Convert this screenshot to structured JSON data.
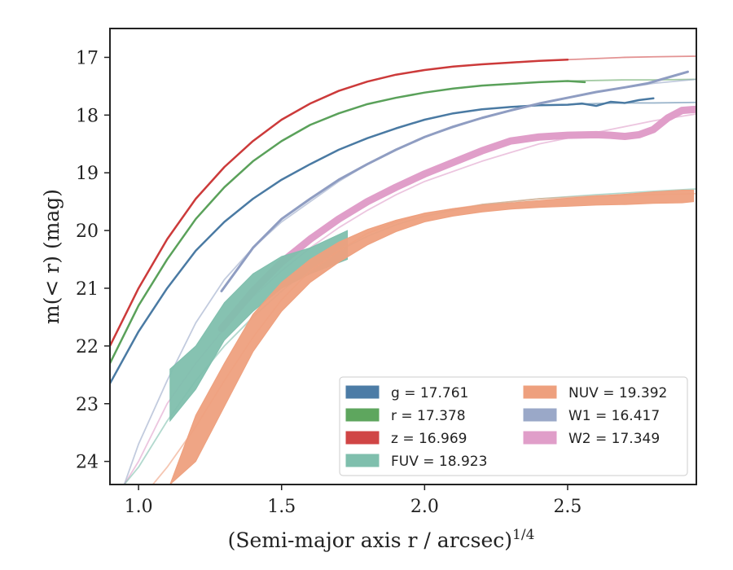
{
  "chart_data": {
    "type": "line",
    "xlabel": "(Semi-major axis r / arcsec)",
    "xlabel_superscript": "1/4",
    "ylabel": "m(< r) (mag)",
    "xlim": [
      0.9,
      2.95
    ],
    "ylim": [
      24.4,
      16.5
    ],
    "y_inverted": true,
    "x_ticks": [
      1.0,
      1.5,
      2.0,
      2.5
    ],
    "x_tick_labels": [
      "1.0",
      "1.5",
      "2.0",
      "2.5"
    ],
    "y_ticks": [
      17,
      18,
      19,
      20,
      21,
      22,
      23,
      24
    ],
    "y_tick_labels": [
      "17",
      "18",
      "19",
      "20",
      "21",
      "22",
      "23",
      "24"
    ],
    "grid": false,
    "legend_placement": "lower-right",
    "legend": [
      {
        "band": "g",
        "label": "g = 17.761",
        "color": "#4c7ca6"
      },
      {
        "band": "r",
        "label": "r = 17.378",
        "color": "#5ea65e"
      },
      {
        "band": "z",
        "label": "z = 16.969",
        "color": "#d04545"
      },
      {
        "band": "FUV",
        "label": "FUV = 18.923",
        "color": "#7fbfad"
      },
      {
        "band": "NUV",
        "label": "NUV = 19.392",
        "color": "#eea07e"
      },
      {
        "band": "W1",
        "label": "W1 = 16.417",
        "color": "#9aa8c8"
      },
      {
        "band": "W2",
        "label": "W2 = 17.349",
        "color": "#e09ec9"
      }
    ],
    "series": [
      {
        "name": "g",
        "kind": "line",
        "color": "#4a7aa3",
        "width": 2.5,
        "x": [
          0.9,
          1.0,
          1.1,
          1.2,
          1.3,
          1.4,
          1.5,
          1.6,
          1.7,
          1.8,
          1.9,
          2.0,
          2.1,
          2.2,
          2.3,
          2.4,
          2.5,
          2.55,
          2.6,
          2.65,
          2.7,
          2.75,
          2.8
        ],
        "y": [
          22.65,
          21.75,
          21.0,
          20.35,
          19.85,
          19.45,
          19.12,
          18.85,
          18.6,
          18.4,
          18.23,
          18.08,
          17.97,
          17.9,
          17.86,
          17.83,
          17.82,
          17.8,
          17.84,
          17.77,
          17.79,
          17.74,
          17.71
        ]
      },
      {
        "name": "g-model",
        "kind": "line",
        "color": "#4a7aa3",
        "width": 1.8,
        "opacity": 0.55,
        "x": [
          2.5,
          2.6,
          2.7,
          2.8,
          2.95
        ],
        "y": [
          17.82,
          17.8,
          17.79,
          17.79,
          17.78
        ]
      },
      {
        "name": "r",
        "kind": "line",
        "color": "#5aa15a",
        "width": 2.5,
        "x": [
          0.9,
          1.0,
          1.1,
          1.2,
          1.3,
          1.4,
          1.5,
          1.6,
          1.7,
          1.8,
          1.9,
          2.0,
          2.1,
          2.2,
          2.3,
          2.4,
          2.5,
          2.56
        ],
        "y": [
          22.3,
          21.3,
          20.5,
          19.8,
          19.25,
          18.8,
          18.45,
          18.17,
          17.97,
          17.81,
          17.7,
          17.61,
          17.54,
          17.49,
          17.46,
          17.43,
          17.41,
          17.43
        ]
      },
      {
        "name": "r-model",
        "kind": "line",
        "color": "#5aa15a",
        "width": 1.8,
        "opacity": 0.55,
        "x": [
          2.5,
          2.6,
          2.7,
          2.8,
          2.95
        ],
        "y": [
          17.41,
          17.4,
          17.39,
          17.39,
          17.38
        ]
      },
      {
        "name": "z",
        "kind": "line",
        "color": "#cc3a3a",
        "width": 2.5,
        "x": [
          0.9,
          1.0,
          1.1,
          1.2,
          1.3,
          1.4,
          1.5,
          1.6,
          1.7,
          1.8,
          1.9,
          2.0,
          2.1,
          2.2,
          2.3,
          2.4,
          2.5
        ],
        "y": [
          22.0,
          21.0,
          20.15,
          19.45,
          18.9,
          18.45,
          18.08,
          17.8,
          17.58,
          17.42,
          17.3,
          17.22,
          17.16,
          17.12,
          17.09,
          17.06,
          17.04
        ]
      },
      {
        "name": "z-model",
        "kind": "line",
        "color": "#cc3a3a",
        "width": 1.8,
        "opacity": 0.55,
        "x": [
          2.5,
          2.6,
          2.7,
          2.8,
          2.95
        ],
        "y": [
          17.04,
          17.02,
          17.0,
          16.99,
          16.98
        ]
      },
      {
        "name": "W1-model",
        "kind": "line",
        "color": "#9aa8c8",
        "width": 1.8,
        "opacity": 0.6,
        "x": [
          0.95,
          1.0,
          1.1,
          1.2,
          1.3,
          1.4,
          1.5,
          1.6,
          1.7,
          1.8,
          1.9,
          2.0,
          2.2,
          2.4,
          2.6,
          2.8,
          2.95
        ],
        "y": [
          24.4,
          23.7,
          22.6,
          21.6,
          20.85,
          20.3,
          19.85,
          19.5,
          19.15,
          18.85,
          18.6,
          18.38,
          18.05,
          17.8,
          17.6,
          17.45,
          17.38
        ]
      },
      {
        "name": "W1",
        "kind": "line",
        "color": "#8f9dc2",
        "width": 3,
        "x": [
          1.29,
          1.4,
          1.5,
          1.6,
          1.7,
          1.8,
          1.9,
          2.0,
          2.1,
          2.2,
          2.3,
          2.4,
          2.5,
          2.6,
          2.7,
          2.78,
          2.85,
          2.92
        ],
        "y": [
          21.05,
          20.3,
          19.8,
          19.45,
          19.12,
          18.85,
          18.6,
          18.38,
          18.2,
          18.05,
          17.92,
          17.8,
          17.7,
          17.6,
          17.52,
          17.45,
          17.35,
          17.25
        ]
      },
      {
        "name": "W2-model",
        "kind": "line",
        "color": "#e09ec9",
        "width": 1.8,
        "opacity": 0.6,
        "x": [
          0.95,
          1.0,
          1.1,
          1.2,
          1.3,
          1.4,
          1.5,
          1.6,
          1.7,
          1.8,
          1.9,
          2.0,
          2.2,
          2.4,
          2.6,
          2.8,
          2.95
        ],
        "y": [
          24.4,
          24.0,
          23.0,
          22.3,
          21.7,
          21.15,
          20.7,
          20.3,
          19.95,
          19.65,
          19.38,
          19.15,
          18.8,
          18.5,
          18.3,
          18.1,
          17.98
        ]
      },
      {
        "name": "W2",
        "kind": "line",
        "color": "#e09ec9",
        "width": 9,
        "x": [
          1.29,
          1.4,
          1.5,
          1.6,
          1.7,
          1.8,
          1.9,
          2.0,
          2.1,
          2.2,
          2.3,
          2.4,
          2.5,
          2.6,
          2.65,
          2.7,
          2.75,
          2.8,
          2.85,
          2.9,
          2.95
        ],
        "y": [
          21.7,
          21.05,
          20.55,
          20.15,
          19.8,
          19.5,
          19.25,
          19.02,
          18.82,
          18.62,
          18.45,
          18.38,
          18.35,
          18.34,
          18.35,
          18.37,
          18.34,
          18.25,
          18.05,
          17.92,
          17.9
        ]
      },
      {
        "name": "FUV-model",
        "kind": "line",
        "color": "#7fbfad",
        "width": 1.8,
        "opacity": 0.6,
        "x": [
          0.95,
          1.0,
          1.1,
          1.2,
          1.3,
          1.4,
          1.5,
          1.6,
          1.7,
          1.8,
          1.9,
          2.0,
          2.2,
          2.4,
          2.6,
          2.8,
          2.95
        ],
        "y": [
          24.4,
          24.1,
          23.3,
          22.6,
          22.0,
          21.5,
          21.05,
          20.65,
          20.35,
          20.1,
          19.9,
          19.75,
          19.55,
          19.45,
          19.38,
          19.32,
          19.28
        ]
      },
      {
        "name": "FUV",
        "kind": "band",
        "color": "#7fbfad",
        "opacity": 0.95,
        "x": [
          1.11,
          1.2,
          1.3,
          1.4,
          1.5,
          1.6,
          1.73
        ],
        "y_upper": [
          22.4,
          22.0,
          21.25,
          20.75,
          20.45,
          20.3,
          20.0
        ],
        "y_lower": [
          23.3,
          22.75,
          21.9,
          21.4,
          21.0,
          20.75,
          20.5
        ]
      },
      {
        "name": "NUV-model",
        "kind": "line",
        "color": "#eea07e",
        "width": 1.8,
        "opacity": 0.6,
        "x": [
          1.05,
          1.1,
          1.2,
          1.3,
          1.4,
          1.5,
          1.6,
          1.7,
          1.8,
          1.9,
          2.0,
          2.2,
          2.4,
          2.6,
          2.8,
          2.95
        ],
        "y": [
          24.4,
          24.1,
          23.4,
          22.6,
          21.85,
          21.2,
          20.7,
          20.35,
          20.05,
          19.85,
          19.7,
          19.55,
          19.45,
          19.4,
          19.38,
          19.36
        ]
      },
      {
        "name": "NUV",
        "kind": "band",
        "color": "#eea07e",
        "opacity": 0.95,
        "x": [
          1.11,
          1.2,
          1.3,
          1.4,
          1.5,
          1.6,
          1.7,
          1.8,
          1.9,
          2.0,
          2.1,
          2.2,
          2.3,
          2.4,
          2.5,
          2.6,
          2.7,
          2.8,
          2.9,
          2.94
        ],
        "y_upper": [
          24.4,
          23.2,
          22.3,
          21.45,
          20.9,
          20.5,
          20.2,
          19.98,
          19.82,
          19.7,
          19.62,
          19.56,
          19.52,
          19.48,
          19.44,
          19.4,
          19.37,
          19.33,
          19.3,
          19.3
        ],
        "y_lower": [
          24.4,
          24.0,
          23.05,
          22.1,
          21.4,
          20.9,
          20.55,
          20.25,
          20.02,
          19.85,
          19.75,
          19.68,
          19.63,
          19.6,
          19.58,
          19.56,
          19.55,
          19.53,
          19.52,
          19.5
        ]
      }
    ]
  }
}
